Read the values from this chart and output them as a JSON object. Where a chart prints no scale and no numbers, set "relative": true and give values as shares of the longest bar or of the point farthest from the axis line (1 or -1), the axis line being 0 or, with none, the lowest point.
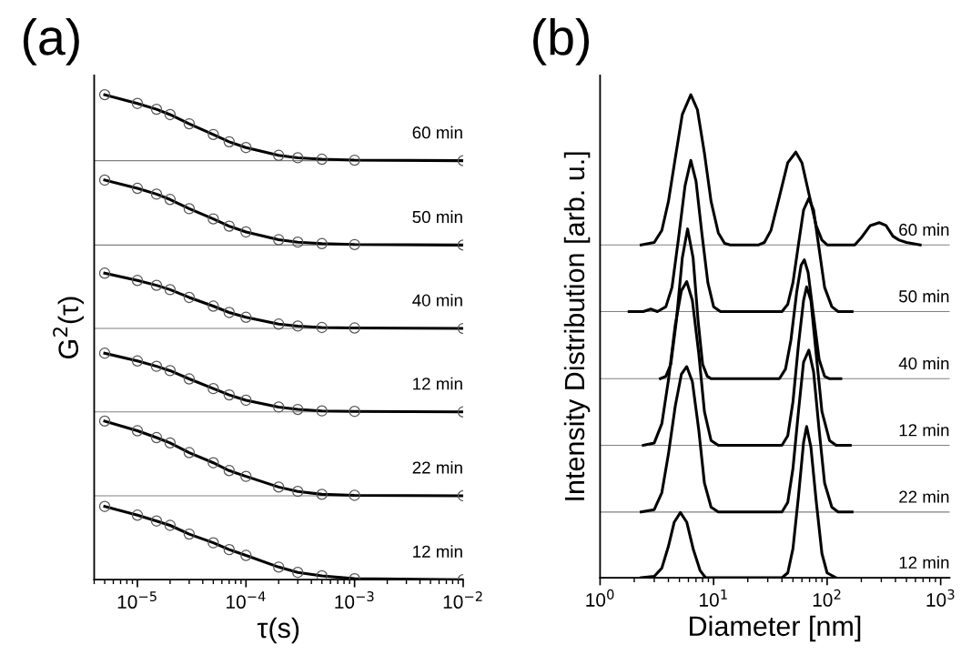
{
  "chart_data": [
    {
      "type": "line",
      "title": "(a)",
      "xlabel": "τ(s)",
      "ylabel": "G$^{2}$(τ)",
      "relative": true,
      "log": "x",
      "marker": "circle",
      "grid": false,
      "xlim": [
        4e-06,
        0.01
      ],
      "xticks": [
        {
          "value": 1e-05,
          "label": "10$^{−5}$"
        },
        {
          "value": 0.0001,
          "label": "10$^{−4}$"
        },
        {
          "value": 0.001,
          "label": "10$^{−3}$"
        },
        {
          "value": 0.01,
          "label": "10$^{−2}$"
        }
      ],
      "x": [
        5e-06,
        1e-05,
        1.5e-05,
        2e-05,
        3e-05,
        5e-05,
        7e-05,
        0.0001,
        0.0002,
        0.0003,
        0.0005,
        0.001,
        0.01
      ],
      "series": [
        {
          "name": "12 min",
          "color": "#000000",
          "values": [
            0.151,
            0.133,
            0.121,
            0.112,
            0.094,
            0.076,
            0.062,
            0.05,
            0.026,
            0.015,
            0.008,
            0.002,
            0
          ]
        },
        {
          "name": "22 min",
          "color": "#000000",
          "values": [
            0.327,
            0.307,
            0.293,
            0.282,
            0.262,
            0.241,
            0.225,
            0.213,
            0.191,
            0.182,
            0.176,
            0.174,
            0.173
          ]
        },
        {
          "name": "12 min",
          "color": "#000000",
          "values": [
            0.467,
            0.451,
            0.44,
            0.431,
            0.414,
            0.394,
            0.381,
            0.37,
            0.356,
            0.351,
            0.348,
            0.347,
            0.346
          ]
        },
        {
          "name": "40 min",
          "color": "#000000",
          "values": [
            0.632,
            0.617,
            0.607,
            0.598,
            0.582,
            0.564,
            0.551,
            0.541,
            0.527,
            0.523,
            0.52,
            0.519,
            0.518
          ]
        },
        {
          "name": "50 min",
          "color": "#000000",
          "values": [
            0.824,
            0.807,
            0.795,
            0.784,
            0.765,
            0.744,
            0.729,
            0.717,
            0.701,
            0.696,
            0.693,
            0.691,
            0.69
          ]
        },
        {
          "name": "60 min",
          "color": "#000000",
          "values": [
            1.0,
            0.982,
            0.97,
            0.959,
            0.94,
            0.918,
            0.903,
            0.891,
            0.875,
            0.87,
            0.867,
            0.865,
            0.864
          ]
        }
      ],
      "ref_lines": [
        {
          "axis": "y",
          "value": 0.173,
          "color": "#808080"
        },
        {
          "axis": "y",
          "value": 0.346,
          "color": "#808080"
        },
        {
          "axis": "y",
          "value": 0.518,
          "color": "#808080"
        },
        {
          "axis": "y",
          "value": 0.69,
          "color": "#808080"
        },
        {
          "axis": "y",
          "value": 0.864,
          "color": "#808080"
        }
      ]
    },
    {
      "type": "line",
      "title": "(b)",
      "xlabel": "Diameter [nm]",
      "ylabel": "Intensity Distribution [arb. u.]",
      "relative": true,
      "log": "x",
      "marker": "none",
      "grid": false,
      "xlim": [
        1,
        1200
      ],
      "xticks": [
        {
          "value": 1,
          "label": "10$^{0}$"
        },
        {
          "value": 10,
          "label": "10$^{1}$"
        },
        {
          "value": 100,
          "label": "10$^{2}$"
        },
        {
          "value": 1000,
          "label": "10$^{3}$"
        }
      ],
      "series": [
        {
          "color": "#000000",
          "x": [
            2.3,
            3.0,
            3.5,
            4.0,
            4.5,
            5.1,
            5.8,
            6.6,
            7.6,
            8.5,
            40,
            45,
            50,
            56,
            62,
            66,
            72,
            80,
            90,
            100,
            120
          ],
          "values": [
            0,
            0.003,
            0.02,
            0.065,
            0.115,
            0.135,
            0.115,
            0.06,
            0.015,
            0,
            0,
            0.01,
            0.06,
            0.17,
            0.28,
            0.313,
            0.27,
            0.16,
            0.05,
            0.01,
            0
          ]
        },
        {
          "color": "#000000",
          "x": [
            2.3,
            3.0,
            3.5,
            4.0,
            4.6,
            5.2,
            5.8,
            6.5,
            7.4,
            8.3,
            9.5,
            11,
            40,
            45,
            50,
            56,
            62,
            69,
            76,
            85,
            95,
            110,
            125,
            166
          ],
          "values": [
            0.136,
            0.141,
            0.176,
            0.256,
            0.356,
            0.421,
            0.437,
            0.406,
            0.306,
            0.196,
            0.146,
            0.136,
            0.136,
            0.156,
            0.226,
            0.346,
            0.446,
            0.471,
            0.426,
            0.306,
            0.196,
            0.146,
            0.136,
            0.136
          ]
        },
        {
          "color": "#000000",
          "x": [
            2.4,
            3.0,
            3.5,
            4.0,
            4.6,
            5.2,
            5.8,
            6.5,
            7.4,
            8.3,
            9.5,
            11,
            40,
            45,
            50,
            56,
            62,
            66,
            72,
            80,
            90,
            105,
            120,
            160
          ],
          "values": [
            0.274,
            0.279,
            0.319,
            0.409,
            0.524,
            0.594,
            0.613,
            0.574,
            0.464,
            0.344,
            0.284,
            0.274,
            0.274,
            0.294,
            0.364,
            0.484,
            0.574,
            0.602,
            0.574,
            0.464,
            0.344,
            0.284,
            0.274,
            0.274
          ]
        },
        {
          "color": "#000000",
          "x": [
            3.4,
            3.8,
            4.2,
            4.7,
            5.3,
            5.9,
            6.6,
            7.3,
            8.0,
            8.8,
            9.5,
            38,
            43,
            48,
            54,
            59,
            63,
            68,
            75,
            85,
            95,
            105,
            132
          ],
          "values": [
            0.412,
            0.417,
            0.442,
            0.532,
            0.662,
            0.722,
            0.662,
            0.532,
            0.442,
            0.417,
            0.412,
            0.412,
            0.432,
            0.492,
            0.592,
            0.647,
            0.658,
            0.632,
            0.552,
            0.452,
            0.417,
            0.412,
            0.412
          ]
        },
        {
          "color": "#000000",
          "x": [
            1.8,
            2.4,
            2.8,
            3.2,
            3.8,
            4.3,
            4.9,
            5.6,
            6.3,
            7.0,
            7.9,
            8.9,
            10,
            11.5,
            40,
            45,
            50,
            56,
            62,
            69,
            76,
            85,
            95,
            110,
            125,
            166
          ],
          "values": [
            0.551,
            0.551,
            0.556,
            0.551,
            0.561,
            0.601,
            0.701,
            0.811,
            0.864,
            0.821,
            0.711,
            0.611,
            0.561,
            0.551,
            0.551,
            0.566,
            0.611,
            0.691,
            0.761,
            0.785,
            0.761,
            0.681,
            0.601,
            0.561,
            0.551,
            0.551
          ]
        },
        {
          "color": "#000000",
          "x": [
            2.3,
            3.0,
            3.5,
            4.0,
            4.6,
            5.3,
            6.3,
            7.2,
            8.3,
            9.5,
            11,
            12.5,
            14,
            25,
            28,
            32,
            38,
            45,
            53,
            60,
            70,
            80,
            90,
            100,
            175,
            200,
            240,
            288,
            330,
            380,
            430,
            500,
            660
          ],
          "values": [
            0.689,
            0.694,
            0.719,
            0.779,
            0.869,
            0.959,
            1.0,
            0.969,
            0.879,
            0.779,
            0.714,
            0.692,
            0.689,
            0.689,
            0.694,
            0.719,
            0.789,
            0.859,
            0.881,
            0.859,
            0.789,
            0.729,
            0.699,
            0.689,
            0.689,
            0.704,
            0.729,
            0.735,
            0.729,
            0.707,
            0.699,
            0.694,
            0.689
          ]
        }
      ],
      "ref_lines": [
        {
          "axis": "y",
          "value": 0,
          "color": "#808080",
          "label": "12 min"
        },
        {
          "axis": "y",
          "value": 0.136,
          "color": "#808080",
          "label": "22 min"
        },
        {
          "axis": "y",
          "value": 0.274,
          "color": "#808080",
          "label": "12 min"
        },
        {
          "axis": "y",
          "value": 0.412,
          "color": "#808080",
          "label": "40 min"
        },
        {
          "axis": "y",
          "value": 0.551,
          "color": "#808080",
          "label": "50 min"
        },
        {
          "axis": "y",
          "value": 0.689,
          "color": "#808080",
          "label": "60 min"
        }
      ]
    }
  ]
}
